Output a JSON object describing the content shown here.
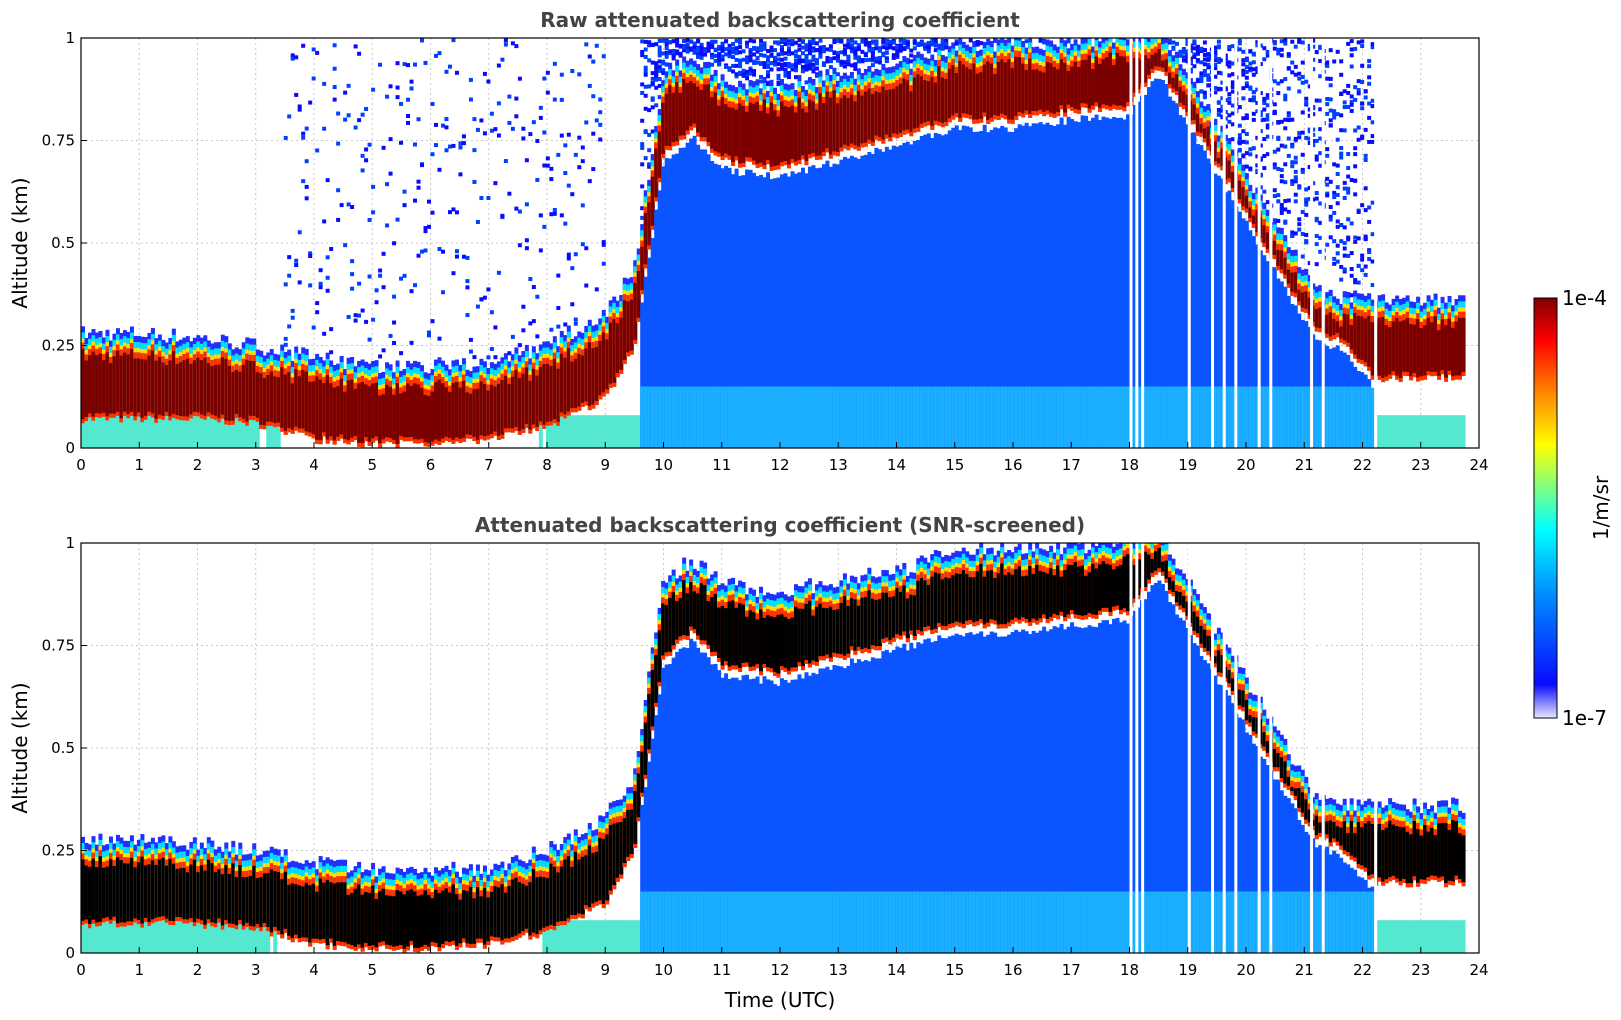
{
  "chart_data": [
    {
      "type": "heatmap",
      "title": "Raw attenuated backscattering coefficient",
      "xlabel": "",
      "ylabel": "Altitude (km)",
      "xlim": [
        0,
        24
      ],
      "ylim": [
        0,
        1
      ],
      "x_ticks": [
        "0",
        "1",
        "2",
        "3",
        "4",
        "5",
        "6",
        "7",
        "8",
        "9",
        "10",
        "11",
        "12",
        "13",
        "14",
        "15",
        "16",
        "17",
        "18",
        "19",
        "20",
        "21",
        "22",
        "23",
        "24"
      ],
      "y_ticks": [
        "0",
        "0.25",
        "0.5",
        "0.75",
        "1"
      ],
      "grid": true,
      "screened": false,
      "cloud_layer": {
        "time_utc": [
          0,
          1,
          2,
          3,
          4,
          5,
          6,
          7,
          8,
          9,
          9.5,
          10,
          10.5,
          11,
          12,
          13,
          14,
          15,
          16,
          17,
          18,
          18.5,
          21.2,
          21.6,
          22.2,
          23,
          23.7
        ],
        "base_km": [
          0.07,
          0.07,
          0.07,
          0.06,
          0.02,
          0.01,
          0.01,
          0.02,
          0.05,
          0.12,
          0.25,
          0.72,
          0.78,
          0.7,
          0.68,
          0.72,
          0.76,
          0.8,
          0.8,
          0.82,
          0.83,
          0.93,
          0.28,
          0.26,
          0.17,
          0.17,
          0.17
        ],
        "top_km": [
          0.25,
          0.25,
          0.24,
          0.22,
          0.19,
          0.17,
          0.17,
          0.18,
          0.22,
          0.3,
          0.4,
          0.88,
          0.93,
          0.87,
          0.85,
          0.88,
          0.9,
          0.95,
          0.96,
          0.96,
          0.98,
          1.0,
          0.35,
          0.34,
          0.33,
          0.33,
          0.33
        ]
      },
      "signal_gaps_utc": [
        18.0,
        18.1,
        18.2,
        19.0,
        19.4,
        19.6,
        19.8,
        20.2,
        20.4,
        21.1,
        21.3,
        22.2
      ]
    },
    {
      "type": "heatmap",
      "title": "Attenuated backscattering coefficient (SNR-screened)",
      "xlabel": "Time (UTC)",
      "ylabel": "Altitude (km)",
      "xlim": [
        0,
        24
      ],
      "ylim": [
        0,
        1
      ],
      "x_ticks": [
        "0",
        "1",
        "2",
        "3",
        "4",
        "5",
        "6",
        "7",
        "8",
        "9",
        "10",
        "11",
        "12",
        "13",
        "14",
        "15",
        "16",
        "17",
        "18",
        "19",
        "20",
        "21",
        "22",
        "23",
        "24"
      ],
      "y_ticks": [
        "0",
        "0.25",
        "0.5",
        "0.75",
        "1"
      ],
      "grid": true,
      "screened": true,
      "cloud_layer": {
        "time_utc": [
          0,
          1,
          2,
          3,
          4,
          5,
          6,
          7,
          8,
          9,
          9.5,
          10,
          10.5,
          11,
          12,
          13,
          14,
          15,
          16,
          17,
          18,
          18.5,
          21.2,
          21.6,
          22.2,
          23,
          23.7
        ],
        "base_km": [
          0.07,
          0.07,
          0.07,
          0.06,
          0.02,
          0.01,
          0.01,
          0.02,
          0.05,
          0.12,
          0.25,
          0.72,
          0.78,
          0.7,
          0.68,
          0.72,
          0.76,
          0.8,
          0.8,
          0.82,
          0.83,
          0.93,
          0.28,
          0.26,
          0.17,
          0.17,
          0.17
        ],
        "top_km": [
          0.25,
          0.25,
          0.24,
          0.22,
          0.19,
          0.17,
          0.17,
          0.18,
          0.22,
          0.3,
          0.4,
          0.88,
          0.93,
          0.87,
          0.85,
          0.88,
          0.9,
          0.95,
          0.96,
          0.96,
          0.98,
          1.0,
          0.35,
          0.34,
          0.33,
          0.33,
          0.33
        ]
      },
      "signal_gaps_utc": [
        18.0,
        18.1,
        18.2,
        19.0,
        19.4,
        19.6,
        19.8,
        20.2,
        20.4,
        21.1,
        21.3,
        22.2
      ]
    }
  ],
  "colorbar": {
    "label": "1/m/sr",
    "max_label": "1e-4",
    "min_label": "1e-7",
    "scale": "log",
    "range": [
      1e-07,
      0.0001
    ],
    "colormap": [
      "#e8e8ff",
      "#0a0aff",
      "#0090ff",
      "#00ffff",
      "#80ff80",
      "#ffff00",
      "#ff8000",
      "#ff0000",
      "#800000"
    ]
  }
}
